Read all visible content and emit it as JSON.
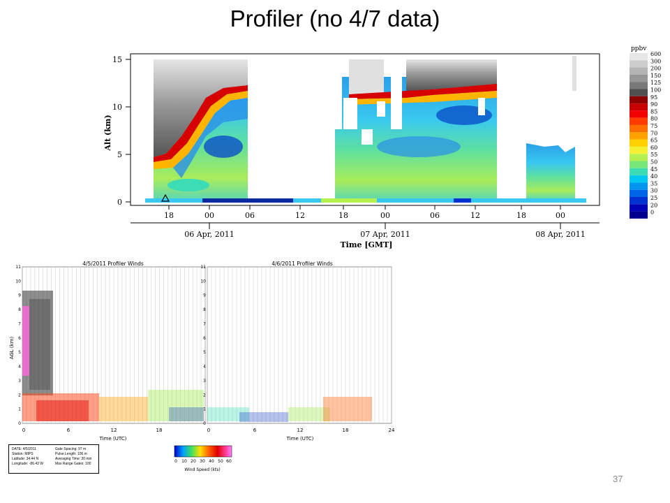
{
  "slide": {
    "title": "Profiler (no 4/7 data)",
    "page_number": "37"
  },
  "ozone": {
    "y_label": "Alt (km)",
    "x_label": "Time [GMT]",
    "y_ticks": [
      "0",
      "5",
      "10",
      "15"
    ],
    "x_ticks": [
      "18",
      "00",
      "06",
      "12",
      "18",
      "00",
      "06",
      "12",
      "18",
      "00"
    ],
    "dates": [
      "06 Apr, 2011",
      "07 Apr, 2011",
      "08 Apr, 2011"
    ],
    "colorbar_title": "ppbv",
    "colorbar_labels": [
      "600",
      "300",
      "200",
      "150",
      "125",
      "100",
      "95",
      "90",
      "85",
      "80",
      "75",
      "70",
      "65",
      "60",
      "55",
      "50",
      "45",
      "40",
      "35",
      "30",
      "25",
      "20",
      "0"
    ],
    "colorbar_colors": [
      "#e6e6e6",
      "#cdcdcd",
      "#b4b4b4",
      "#969696",
      "#787878",
      "#505050",
      "#8b0000",
      "#c80000",
      "#f00000",
      "#ff3c00",
      "#ff6e00",
      "#ffa000",
      "#ffd200",
      "#f5f032",
      "#b4f050",
      "#78e678",
      "#3cdcb4",
      "#00c8f0",
      "#0096f0",
      "#0064e6",
      "#0032d2",
      "#0000b4",
      "#00008c"
    ]
  },
  "wind1": {
    "title": "4/5/2011 Profiler Winds",
    "y_label": "AGL (km)",
    "x_label": "Time (UTC)",
    "y_ticks": [
      "0",
      "1",
      "2",
      "3",
      "4",
      "5",
      "6",
      "7",
      "8",
      "9",
      "10",
      "11"
    ],
    "x_ticks": [
      "0",
      "6",
      "12",
      "18"
    ]
  },
  "wind2": {
    "title": "4/6/2011 Profiler Winds",
    "y_ticks": [
      "0",
      "1",
      "2",
      "3",
      "4",
      "5",
      "6",
      "7",
      "8",
      "9",
      "10",
      "11"
    ],
    "x_ticks": [
      "0",
      "6",
      "12",
      "18",
      "24"
    ],
    "x_label": "Time (UTC)"
  },
  "info_box": {
    "left": [
      "DATE:  4/5/2011",
      "Station:  MIPS",
      "Latitude:  34.44 N",
      "Longitude: -86.43 W"
    ],
    "right": [
      "Gate Spacing: 97 m",
      "Pulse Length: 106 m",
      "Averaging Time: 30 min",
      "Max Range Gates: 100"
    ]
  },
  "wind_legend": {
    "labels": [
      "0",
      "10",
      "20",
      "30",
      "40",
      "50",
      "60"
    ],
    "title": "Wind Speed (kts)"
  }
}
